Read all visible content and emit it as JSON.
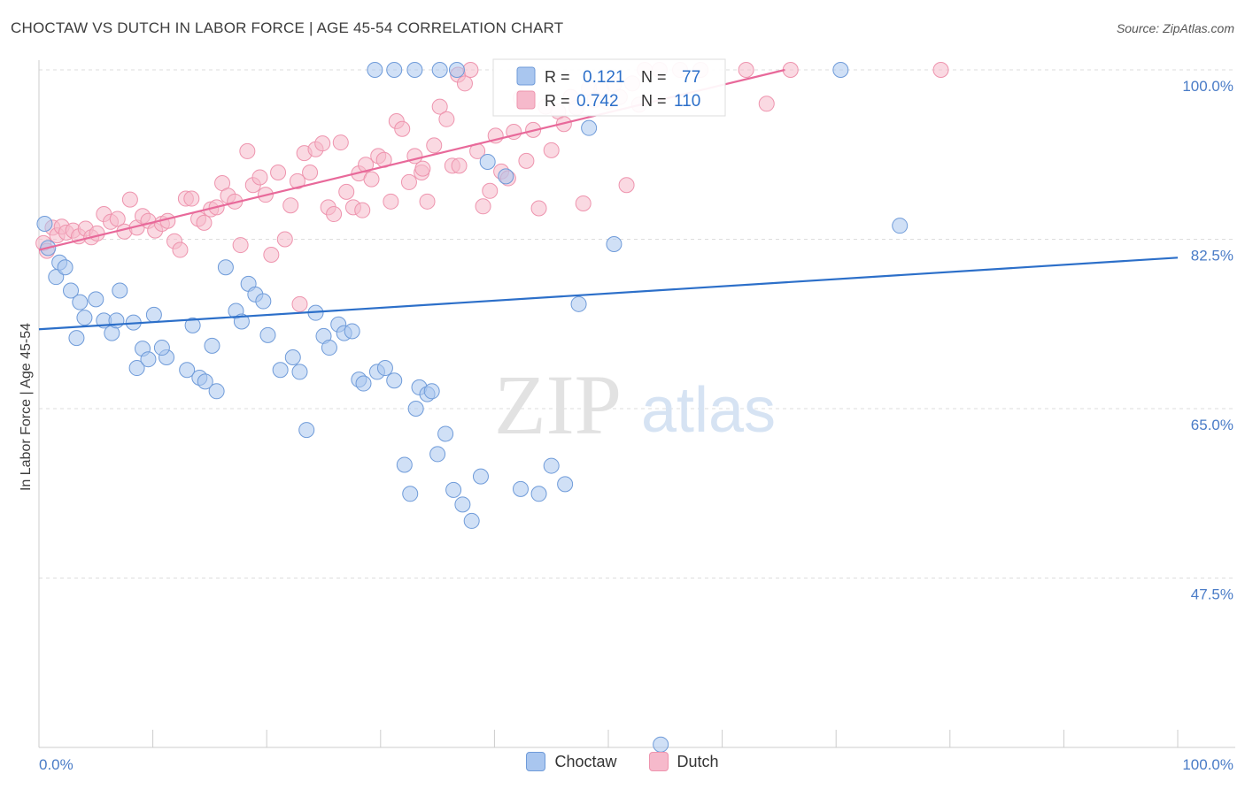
{
  "title": "CHOCTAW VS DUTCH IN LABOR FORCE | AGE 45-54 CORRELATION CHART",
  "source": "Source: ZipAtlas.com",
  "watermark": {
    "zip": "ZIP",
    "atlas": "atlas"
  },
  "legend_stats": [
    {
      "r_label": "R =",
      "r_value": "0.121",
      "n_label": "N =",
      "n_value": "77"
    },
    {
      "r_label": "R =",
      "r_value": "0.742",
      "n_label": "N =",
      "n_value": "110"
    }
  ],
  "colors": {
    "choctaw_fill": "#a9c6ef",
    "choctaw_stroke": "#6f9bd9",
    "choctaw_line": "#2c6fc9",
    "dutch_fill": "#f6b9cb",
    "dutch_stroke": "#ee94ae",
    "dutch_line": "#e8699a",
    "axis_text": "#4a7cc7",
    "grid": "#dddddd"
  },
  "chart_data": {
    "type": "scatter",
    "title": "CHOCTAW VS DUTCH IN LABOR FORCE | AGE 45-54 CORRELATION CHART",
    "xlabel": "",
    "ylabel": "In Labor Force | Age 45-54",
    "xlim": [
      0,
      100
    ],
    "ylim": [
      30,
      100
    ],
    "x_tick_labels": [
      "0.0%",
      "100.0%"
    ],
    "y_ticks": [
      100.0,
      82.5,
      65.0,
      47.5
    ],
    "y_tick_labels": [
      "100.0%",
      "82.5%",
      "65.0%",
      "47.5%"
    ],
    "grid": true,
    "legend_position": "bottom",
    "series": [
      {
        "name": "Choctaw",
        "r": 0.121,
        "n": 77,
        "trend": {
          "x": [
            0,
            100
          ],
          "y": [
            73.2,
            80.6
          ]
        },
        "points": [
          [
            0.5,
            84.1
          ],
          [
            0.8,
            81.6
          ],
          [
            1.8,
            80.1
          ],
          [
            1.5,
            78.6
          ],
          [
            2.3,
            79.6
          ],
          [
            2.8,
            77.2
          ],
          [
            3.6,
            76.0
          ],
          [
            4.0,
            74.4
          ],
          [
            3.3,
            72.3
          ],
          [
            5.0,
            76.3
          ],
          [
            5.7,
            74.1
          ],
          [
            6.4,
            72.8
          ],
          [
            6.8,
            74.1
          ],
          [
            7.1,
            77.2
          ],
          [
            8.3,
            73.9
          ],
          [
            8.6,
            69.2
          ],
          [
            9.1,
            71.2
          ],
          [
            9.6,
            70.1
          ],
          [
            10.1,
            74.7
          ],
          [
            11.2,
            70.3
          ],
          [
            10.8,
            71.3
          ],
          [
            13.0,
            69.0
          ],
          [
            14.1,
            68.2
          ],
          [
            13.5,
            73.6
          ],
          [
            14.6,
            67.8
          ],
          [
            15.2,
            71.5
          ],
          [
            15.6,
            66.8
          ],
          [
            16.4,
            79.6
          ],
          [
            17.3,
            75.1
          ],
          [
            17.8,
            74.0
          ],
          [
            18.4,
            77.9
          ],
          [
            19.0,
            76.8
          ],
          [
            19.7,
            76.1
          ],
          [
            20.1,
            72.6
          ],
          [
            21.2,
            69.0
          ],
          [
            22.3,
            70.3
          ],
          [
            22.9,
            68.8
          ],
          [
            23.5,
            62.8
          ],
          [
            24.3,
            74.9
          ],
          [
            25.0,
            72.5
          ],
          [
            25.5,
            71.3
          ],
          [
            26.3,
            73.7
          ],
          [
            26.8,
            72.8
          ],
          [
            27.5,
            73.0
          ],
          [
            28.1,
            68.0
          ],
          [
            28.5,
            67.6
          ],
          [
            29.7,
            68.8
          ],
          [
            30.4,
            69.2
          ],
          [
            31.2,
            67.9
          ],
          [
            32.1,
            59.2
          ],
          [
            32.6,
            56.2
          ],
          [
            33.1,
            65.0
          ],
          [
            33.4,
            67.2
          ],
          [
            34.1,
            66.5
          ],
          [
            34.5,
            66.8
          ],
          [
            35.0,
            60.3
          ],
          [
            35.7,
            62.4
          ],
          [
            36.4,
            56.6
          ],
          [
            37.2,
            55.1
          ],
          [
            38.0,
            53.4
          ],
          [
            38.8,
            58.0
          ],
          [
            39.4,
            90.5
          ],
          [
            41.0,
            89.0
          ],
          [
            42.3,
            56.7
          ],
          [
            43.9,
            56.2
          ],
          [
            45.0,
            59.1
          ],
          [
            46.2,
            57.2
          ],
          [
            47.4,
            75.8
          ],
          [
            48.3,
            94.0
          ],
          [
            50.5,
            82.0
          ],
          [
            54.6,
            30.3
          ],
          [
            29.5,
            100.0
          ],
          [
            31.2,
            100.0
          ],
          [
            33.0,
            100.0
          ],
          [
            35.2,
            100.0
          ],
          [
            36.7,
            100.0
          ],
          [
            70.4,
            100.0
          ],
          [
            75.6,
            83.9
          ]
        ]
      },
      {
        "name": "Dutch",
        "r": 0.742,
        "n": 110,
        "trend": {
          "x": [
            0,
            65.5
          ],
          "y": [
            81.4,
            100.0
          ]
        },
        "points": [
          [
            0.4,
            82.1
          ],
          [
            0.7,
            81.3
          ],
          [
            1.2,
            83.7
          ],
          [
            1.6,
            82.9
          ],
          [
            2.0,
            83.8
          ],
          [
            2.4,
            83.2
          ],
          [
            3.0,
            83.4
          ],
          [
            3.5,
            82.8
          ],
          [
            4.1,
            83.6
          ],
          [
            4.6,
            82.7
          ],
          [
            5.1,
            83.1
          ],
          [
            5.7,
            85.1
          ],
          [
            6.3,
            84.3
          ],
          [
            6.9,
            84.6
          ],
          [
            7.5,
            83.3
          ],
          [
            8.0,
            86.6
          ],
          [
            8.6,
            83.7
          ],
          [
            9.1,
            84.9
          ],
          [
            9.6,
            84.4
          ],
          [
            10.2,
            83.4
          ],
          [
            10.8,
            84.1
          ],
          [
            11.3,
            84.4
          ],
          [
            11.9,
            82.3
          ],
          [
            12.4,
            81.4
          ],
          [
            12.9,
            86.7
          ],
          [
            13.4,
            86.7
          ],
          [
            14.0,
            84.6
          ],
          [
            14.5,
            84.2
          ],
          [
            15.1,
            85.6
          ],
          [
            15.6,
            85.8
          ],
          [
            16.1,
            88.3
          ],
          [
            16.6,
            87.0
          ],
          [
            17.2,
            86.4
          ],
          [
            17.7,
            81.9
          ],
          [
            18.3,
            91.6
          ],
          [
            18.8,
            88.1
          ],
          [
            19.4,
            88.9
          ],
          [
            19.9,
            87.1
          ],
          [
            20.4,
            80.9
          ],
          [
            21.0,
            89.4
          ],
          [
            21.6,
            82.5
          ],
          [
            22.1,
            86.0
          ],
          [
            22.7,
            88.5
          ],
          [
            23.3,
            91.4
          ],
          [
            23.8,
            89.4
          ],
          [
            24.3,
            91.8
          ],
          [
            24.9,
            92.4
          ],
          [
            25.4,
            85.8
          ],
          [
            25.9,
            85.1
          ],
          [
            26.5,
            92.5
          ],
          [
            27.0,
            87.4
          ],
          [
            27.6,
            85.8
          ],
          [
            28.1,
            89.3
          ],
          [
            28.7,
            90.2
          ],
          [
            29.2,
            88.7
          ],
          [
            29.8,
            91.1
          ],
          [
            30.3,
            90.7
          ],
          [
            30.9,
            86.4
          ],
          [
            31.4,
            94.7
          ],
          [
            31.9,
            93.9
          ],
          [
            32.5,
            88.4
          ],
          [
            33.0,
            91.1
          ],
          [
            33.6,
            89.4
          ],
          [
            34.1,
            86.4
          ],
          [
            34.7,
            92.2
          ],
          [
            35.2,
            96.2
          ],
          [
            35.8,
            94.9
          ],
          [
            36.3,
            90.1
          ],
          [
            36.8,
            99.5
          ],
          [
            37.4,
            98.6
          ],
          [
            37.9,
            100.0
          ],
          [
            38.5,
            91.6
          ],
          [
            39.0,
            85.9
          ],
          [
            39.6,
            87.5
          ],
          [
            40.1,
            93.2
          ],
          [
            40.6,
            89.5
          ],
          [
            41.2,
            88.8
          ],
          [
            41.7,
            93.6
          ],
          [
            42.3,
            97.1
          ],
          [
            42.8,
            90.6
          ],
          [
            43.4,
            93.8
          ],
          [
            43.9,
            85.7
          ],
          [
            44.5,
            96.2
          ],
          [
            45.0,
            91.7
          ],
          [
            45.6,
            95.7
          ],
          [
            46.1,
            94.4
          ],
          [
            46.7,
            97.2
          ],
          [
            47.2,
            96.1
          ],
          [
            47.8,
            86.2
          ],
          [
            48.3,
            98.1
          ],
          [
            48.8,
            96.9
          ],
          [
            49.4,
            98.0
          ],
          [
            49.9,
            96.7
          ],
          [
            50.5,
            98.5
          ],
          [
            51.0,
            97.2
          ],
          [
            51.6,
            88.1
          ],
          [
            52.1,
            98.6
          ],
          [
            52.7,
            96.4
          ],
          [
            53.2,
            100.0
          ],
          [
            54.5,
            100.0
          ],
          [
            56.3,
            100.0
          ],
          [
            58.1,
            100.0
          ],
          [
            62.1,
            100.0
          ],
          [
            63.9,
            96.5
          ],
          [
            66.0,
            100.0
          ],
          [
            79.2,
            100.0
          ],
          [
            33.7,
            89.8
          ],
          [
            28.4,
            85.5
          ],
          [
            22.9,
            75.8
          ],
          [
            36.9,
            90.1
          ]
        ]
      }
    ]
  }
}
